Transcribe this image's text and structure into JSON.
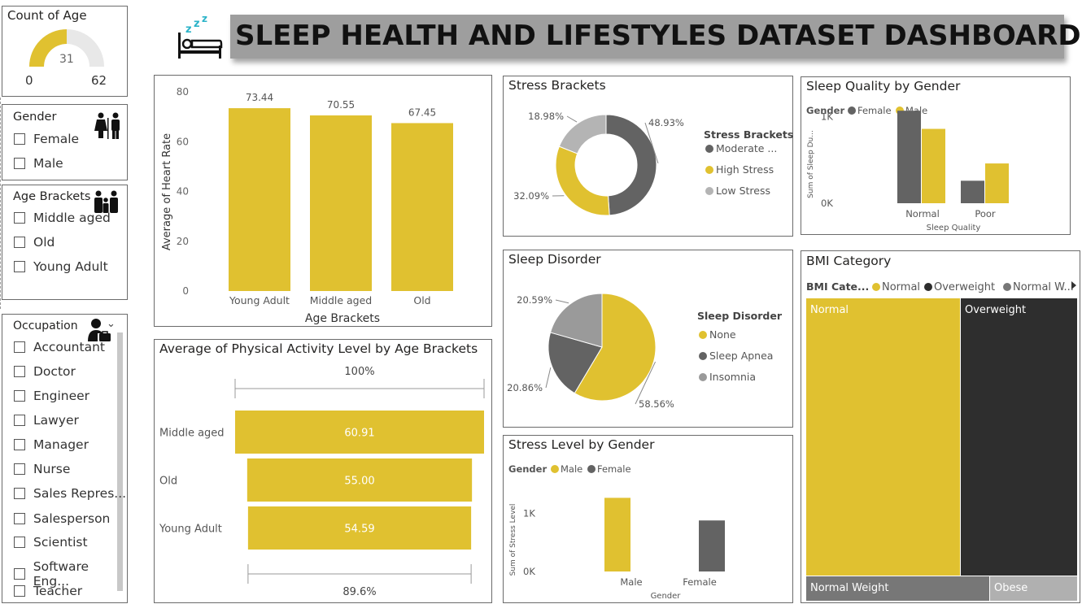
{
  "header": {
    "title": "SLEEP HEALTH AND LIFESTYLES DATASET DASHBOARD",
    "icon": "sleeping-bed-icon"
  },
  "colors": {
    "yellow": "#E0C130",
    "dark": "#2E2E2E",
    "mid": "#636363",
    "light": "#B4B4B4",
    "gray_banner": "#9E9E9E"
  },
  "count_of_age": {
    "title": "Count of Age",
    "value": "31",
    "min": "0",
    "max": "62",
    "fill_fraction": 0.5
  },
  "gender_slicer": {
    "title": "Gender",
    "items": [
      "Female",
      "Male"
    ]
  },
  "age_slicer": {
    "title": "Age Brackets",
    "items": [
      "Middle aged",
      "Old",
      "Young Adult"
    ]
  },
  "occupation_slicer": {
    "title": "Occupation",
    "items": [
      "Accountant",
      "Doctor",
      "Engineer",
      "Lawyer",
      "Manager",
      "Nurse",
      "Sales Repres...",
      "Salesperson",
      "Scientist",
      "Software Eng...",
      "Teacher"
    ]
  },
  "chart_data": [
    {
      "type": "bar",
      "title": "",
      "categories": [
        "Young Adult",
        "Middle aged",
        "Old"
      ],
      "values": [
        73.44,
        70.55,
        67.45
      ],
      "value_labels": [
        "73.44",
        "70.55",
        "67.45"
      ],
      "xlabel": "Age Brackets",
      "ylabel": "Average of Heart Rate",
      "ylim": [
        0,
        80
      ],
      "yticks": [
        "0",
        "20",
        "40",
        "60",
        "80"
      ]
    },
    {
      "type": "funnel",
      "title": "Average of Physical Activity Level by Age Brackets",
      "categories": [
        "Middle aged",
        "Old",
        "Young Adult"
      ],
      "values": [
        60.91,
        55.0,
        54.59
      ],
      "value_labels": [
        "60.91",
        "55.00",
        "54.59"
      ],
      "top_label": "100%",
      "bottom_label": "89.6%"
    },
    {
      "type": "donut",
      "title": "Stress Brackets",
      "legend_title": "Stress Brackets",
      "labels": [
        "Moderate ...",
        "High Stress",
        "Low Stress"
      ],
      "values": [
        48.93,
        32.09,
        18.98
      ],
      "value_labels": [
        "48.93%",
        "32.09%",
        "18.98%"
      ]
    },
    {
      "type": "pie",
      "title": "Sleep Disorder",
      "legend_title": "Sleep Disorder",
      "labels": [
        "None",
        "Sleep Apnea",
        "Insomnia"
      ],
      "values": [
        58.56,
        20.86,
        20.59
      ],
      "value_labels": [
        "58.56%",
        "20.86%",
        "20.59%"
      ]
    },
    {
      "type": "bar",
      "title": "Sleep Quality by Gender",
      "legend_title": "Gender",
      "categories": [
        "Normal",
        "Poor"
      ],
      "series": [
        {
          "name": "Female",
          "values": [
            1070,
            260
          ]
        },
        {
          "name": "Male",
          "values": [
            860,
            460
          ]
        }
      ],
      "xlabel": "Sleep Quality",
      "ylabel": "Sum of Sleep Du...",
      "yticks": [
        "0K",
        "1K"
      ],
      "ylim": [
        0,
        1100
      ]
    },
    {
      "type": "bar",
      "title": "Stress Level by Gender",
      "legend_title": "Gender",
      "categories": [
        "Male",
        "Female"
      ],
      "series": [
        {
          "name": "Male",
          "values": [
            1270,
            0
          ]
        },
        {
          "name": "Female",
          "values": [
            0,
            880
          ]
        }
      ],
      "xlabel": "Gender",
      "ylabel": "Sum of Stress Level",
      "yticks": [
        "0K",
        "1K"
      ],
      "ylim": [
        0,
        1500
      ]
    },
    {
      "type": "treemap",
      "title": "BMI Category",
      "legend_title": "BMI Cate...",
      "legend_items": [
        "Normal",
        "Overweight",
        "Normal W..."
      ],
      "labels": [
        "Normal",
        "Overweight",
        "Normal Weight",
        "Obese"
      ]
    }
  ]
}
